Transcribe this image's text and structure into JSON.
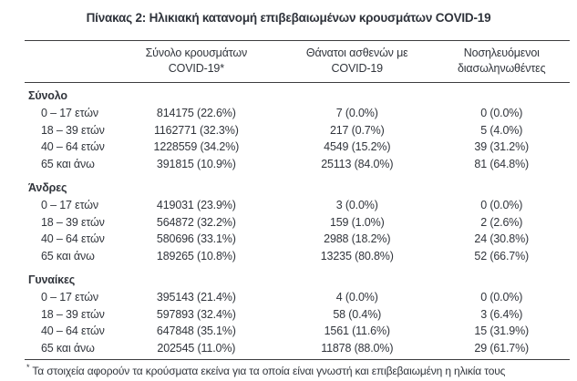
{
  "title": "Πίνακας 2: Ηλικιακή κατανομή επιβεβαιωμένων κρουσμάτων COVID-19",
  "table": {
    "columns": [
      {
        "line1": "Σύνολο κρουσμάτων",
        "line2": "COVID-19*"
      },
      {
        "line1": "Θάνατοι ασθενών με",
        "line2": "COVID-19"
      },
      {
        "line1": "Νοσηλευόμενοι",
        "line2": "διασωληνωθέντες"
      }
    ],
    "sections": [
      {
        "label": "Σύνολο",
        "rows": [
          {
            "age": "0 – 17 ετών",
            "cases": "814175 (22.6%)",
            "deaths": "7 (0.0%)",
            "intubated": "0 (0.0%)"
          },
          {
            "age": "18 – 39 ετών",
            "cases": "1162771 (32.3%)",
            "deaths": "217 (0.7%)",
            "intubated": "5 (4.0%)"
          },
          {
            "age": "40 – 64 ετών",
            "cases": "1228559 (34.2%)",
            "deaths": "4549 (15.2%)",
            "intubated": "39 (31.2%)"
          },
          {
            "age": "65 και άνω",
            "cases": "391815 (10.9%)",
            "deaths": "25113 (84.0%)",
            "intubated": "81 (64.8%)"
          }
        ]
      },
      {
        "label": "Άνδρες",
        "rows": [
          {
            "age": "0 – 17 ετών",
            "cases": "419031 (23.9%)",
            "deaths": "3 (0.0%)",
            "intubated": "0 (0.0%)"
          },
          {
            "age": "18 – 39 ετών",
            "cases": "564872 (32.2%)",
            "deaths": "159 (1.0%)",
            "intubated": "2 (2.6%)"
          },
          {
            "age": "40 – 64 ετών",
            "cases": "580696 (33.1%)",
            "deaths": "2988 (18.2%)",
            "intubated": "24 (30.8%)"
          },
          {
            "age": "65 και άνω",
            "cases": "189265 (10.8%)",
            "deaths": "13235 (80.8%)",
            "intubated": "52 (66.7%)"
          }
        ]
      },
      {
        "label": "Γυναίκες",
        "rows": [
          {
            "age": "0 – 17 ετών",
            "cases": "395143 (21.4%)",
            "deaths": "4 (0.0%)",
            "intubated": "0 (0.0%)"
          },
          {
            "age": "18 – 39 ετών",
            "cases": "597893 (32.4%)",
            "deaths": "58 (0.4%)",
            "intubated": "3 (6.4%)"
          },
          {
            "age": "40 – 64 ετών",
            "cases": "647848 (35.1%)",
            "deaths": "1561 (11.6%)",
            "intubated": "15 (31.9%)"
          },
          {
            "age": "65 και άνω",
            "cases": "202545 (11.0%)",
            "deaths": "11878 (88.0%)",
            "intubated": "29 (61.7%)"
          }
        ]
      }
    ]
  },
  "footnote": {
    "marker": "*",
    "text": "Τα στοιχεία αφορούν τα κρούσματα εκείνα για τα οποία είναι γνωστή και επιβεβαιωμένη η ηλικία τους"
  },
  "colors": {
    "text": "#31353c",
    "rule": "#3d3d3f",
    "background": "#ffffff"
  }
}
